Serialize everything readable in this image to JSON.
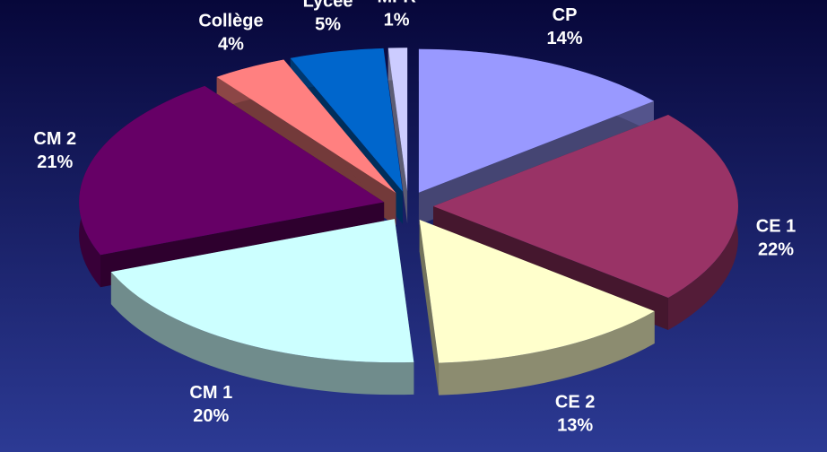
{
  "chart_data": {
    "type": "pie3d",
    "categories": [
      "CP",
      "CE 1",
      "CE 2",
      "CM 1",
      "CM 2",
      "Collège",
      "Lycée",
      "MFR"
    ],
    "values": [
      14,
      22,
      13,
      20,
      21,
      4,
      5,
      1
    ],
    "value_labels": [
      "14%",
      "22%",
      "13%",
      "20%",
      "21%",
      "4%",
      "5%",
      "1%"
    ],
    "colors": [
      "#9999ff",
      "#993366",
      "#ffffcc",
      "#ccffff",
      "#660066",
      "#ff8080",
      "#0066cc",
      "#ccccff"
    ]
  }
}
